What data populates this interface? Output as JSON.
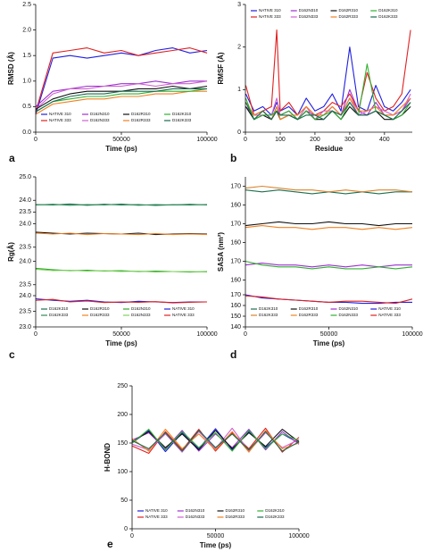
{
  "chart_data": [
    {
      "type": "line",
      "label": "a",
      "xlabel": "Time (ps)",
      "ylabel": "RMSD (Å)",
      "legend": "bottom",
      "x": [
        0,
        10000,
        20000,
        30000,
        40000,
        50000,
        60000,
        70000,
        80000,
        90000,
        100000
      ],
      "xlim": [
        0,
        100000
      ],
      "xticks": [
        0,
        50000,
        100000
      ],
      "ylim": [
        0,
        2.5
      ],
      "yticks": [
        {
          "value": 0,
          "label": "0.0"
        },
        0.5,
        {
          "value": 1,
          "label": "1.0"
        },
        1.5,
        {
          "value": 2,
          "label": "2.0"
        },
        2.5
      ],
      "series": [
        {
          "name": "NATIVE 310",
          "color": "#1f1fe0",
          "values": [
            0.35,
            1.45,
            1.5,
            1.45,
            1.5,
            1.55,
            1.5,
            1.6,
            1.65,
            1.55,
            1.6
          ]
        },
        {
          "name": "NATIVE 333",
          "color": "#e02020",
          "values": [
            0.4,
            1.55,
            1.6,
            1.65,
            1.55,
            1.6,
            1.5,
            1.55,
            1.6,
            1.65,
            1.55
          ]
        },
        {
          "name": "D162N310",
          "color": "#9b30d0",
          "values": [
            0.5,
            0.8,
            0.85,
            0.9,
            0.9,
            0.95,
            0.95,
            1.0,
            0.95,
            1.0,
            1.0
          ]
        },
        {
          "name": "D162N333",
          "color": "#d060d0",
          "values": [
            0.45,
            0.75,
            0.85,
            0.85,
            0.9,
            0.9,
            0.95,
            0.9,
            0.95,
            0.95,
            1.0
          ]
        },
        {
          "name": "D162R310",
          "color": "#111111",
          "values": [
            0.45,
            0.65,
            0.75,
            0.8,
            0.8,
            0.8,
            0.85,
            0.85,
            0.9,
            0.85,
            0.9
          ]
        },
        {
          "name": "D162R333",
          "color": "#f08020",
          "values": [
            0.35,
            0.55,
            0.6,
            0.65,
            0.65,
            0.7,
            0.7,
            0.75,
            0.75,
            0.8,
            0.8
          ]
        },
        {
          "name": "D162K310",
          "color": "#30b030",
          "values": [
            0.4,
            0.6,
            0.65,
            0.7,
            0.7,
            0.75,
            0.75,
            0.8,
            0.8,
            0.8,
            0.85
          ]
        },
        {
          "name": "D162K333",
          "color": "#1a6b50",
          "values": [
            0.4,
            0.6,
            0.7,
            0.75,
            0.75,
            0.8,
            0.8,
            0.8,
            0.85,
            0.85,
            0.85
          ]
        }
      ]
    },
    {
      "type": "line",
      "label": "b",
      "xlabel": "Residue",
      "ylabel": "RMSF (Å)",
      "legend": "top",
      "x": [
        1,
        25,
        50,
        75,
        90,
        100,
        125,
        150,
        175,
        200,
        225,
        250,
        275,
        300,
        325,
        350,
        375,
        400,
        425,
        450,
        475
      ],
      "xlim": [
        0,
        480
      ],
      "xticks": [
        0,
        100,
        200,
        300,
        400
      ],
      "ylim": [
        0,
        3
      ],
      "yticks": [
        0,
        1,
        2,
        3
      ],
      "series": [
        {
          "name": "NATIVE 310",
          "color": "#1f1fe0",
          "values": [
            0.9,
            0.5,
            0.6,
            0.4,
            0.7,
            0.5,
            0.6,
            0.4,
            0.8,
            0.5,
            0.6,
            0.9,
            0.5,
            2.0,
            0.6,
            0.5,
            1.1,
            0.6,
            0.5,
            0.7,
            1.0
          ]
        },
        {
          "name": "NATIVE 333",
          "color": "#e02020",
          "values": [
            1.1,
            0.4,
            0.5,
            0.6,
            2.4,
            0.5,
            0.7,
            0.4,
            0.6,
            0.4,
            0.5,
            0.7,
            0.6,
            0.9,
            0.5,
            1.4,
            0.8,
            0.5,
            0.6,
            0.9,
            2.4
          ]
        },
        {
          "name": "D162N310",
          "color": "#9b30d0",
          "values": [
            0.6,
            0.4,
            0.5,
            0.3,
            0.6,
            0.4,
            0.5,
            0.3,
            0.5,
            0.4,
            0.4,
            0.6,
            0.4,
            1.0,
            0.5,
            0.4,
            0.7,
            0.4,
            0.4,
            0.5,
            0.8
          ]
        },
        {
          "name": "D162N333",
          "color": "#d060d0",
          "values": [
            0.7,
            0.4,
            0.4,
            0.4,
            0.8,
            0.4,
            0.5,
            0.3,
            0.6,
            0.3,
            0.5,
            0.5,
            0.4,
            0.8,
            0.4,
            0.5,
            0.6,
            0.5,
            0.4,
            0.5,
            0.9
          ]
        },
        {
          "name": "D162R310",
          "color": "#111111",
          "values": [
            0.6,
            0.3,
            0.4,
            0.3,
            0.5,
            0.3,
            0.4,
            0.3,
            0.5,
            0.3,
            0.3,
            0.5,
            0.3,
            0.6,
            0.4,
            0.4,
            0.5,
            0.3,
            0.3,
            0.4,
            0.6
          ]
        },
        {
          "name": "D162R333",
          "color": "#f08020",
          "values": [
            0.7,
            0.4,
            0.5,
            0.3,
            0.6,
            0.3,
            0.4,
            0.4,
            0.6,
            0.4,
            0.4,
            0.6,
            0.4,
            0.8,
            0.5,
            0.5,
            0.6,
            0.4,
            0.4,
            0.6,
            0.8
          ]
        },
        {
          "name": "D162K310",
          "color": "#30b030",
          "values": [
            0.8,
            0.3,
            0.4,
            0.4,
            0.5,
            0.4,
            0.5,
            0.3,
            0.5,
            0.3,
            0.4,
            0.5,
            0.3,
            0.7,
            0.4,
            1.6,
            0.5,
            0.4,
            0.3,
            0.4,
            0.7
          ]
        },
        {
          "name": "D162K333",
          "color": "#1a6b50",
          "values": [
            0.7,
            0.3,
            0.5,
            0.3,
            0.5,
            0.4,
            0.4,
            0.3,
            0.4,
            0.4,
            0.3,
            0.5,
            0.4,
            0.7,
            0.4,
            0.4,
            0.5,
            0.4,
            0.3,
            0.5,
            0.7
          ]
        }
      ]
    },
    {
      "type": "line",
      "label": "c",
      "xlabel": "Time (ps)",
      "ylabel": "Rg(Å)",
      "legend": "bottom",
      "x": [
        0,
        10000,
        20000,
        30000,
        40000,
        50000,
        60000,
        70000,
        80000,
        90000,
        100000
      ],
      "xlim": [
        0,
        100000
      ],
      "xticks": [
        0,
        50000,
        100000
      ],
      "lanes": [
        {
          "ylim": [
            23.4,
            25.0
          ],
          "yticks": [
            23.5,
            {
              "value": 24,
              "label": "24.0"
            },
            {
              "value": 25,
              "label": "25.0"
            }
          ],
          "series": [
            {
              "name": "D162K310",
              "color": "#1f6f50",
              "values": [
                23.82,
                23.8,
                23.84,
                23.79,
                23.83,
                23.8,
                23.82,
                23.78,
                23.81,
                23.8,
                23.82
              ]
            },
            {
              "name": "D162K333",
              "color": "#2e8b57",
              "values": [
                23.8,
                23.83,
                23.79,
                23.82,
                23.8,
                23.84,
                23.79,
                23.82,
                23.8,
                23.83,
                23.8
              ]
            }
          ]
        },
        {
          "ylim": [
            23.4,
            24.2
          ],
          "yticks": [
            23.5,
            {
              "value": 24,
              "label": "24.0"
            }
          ],
          "series": [
            {
              "name": "D162R310",
              "color": "#111111",
              "values": [
                23.82,
                23.8,
                23.78,
                23.8,
                23.79,
                23.78,
                23.8,
                23.77,
                23.78,
                23.79,
                23.78
              ]
            },
            {
              "name": "D162R333",
              "color": "#f08020",
              "values": [
                23.8,
                23.78,
                23.8,
                23.77,
                23.79,
                23.78,
                23.77,
                23.79,
                23.77,
                23.78,
                23.77
              ]
            }
          ]
        },
        {
          "ylim": [
            23.4,
            24.2
          ],
          "yticks": [
            23.5,
            {
              "value": 24,
              "label": "24.0"
            }
          ],
          "series": [
            {
              "name": "D162N310",
              "color": "#2fa82f",
              "values": [
                23.85,
                23.82,
                23.8,
                23.81,
                23.79,
                23.8,
                23.78,
                23.79,
                23.78,
                23.77,
                23.78
              ]
            },
            {
              "name": "D162N333",
              "color": "#7fd35a",
              "values": [
                23.83,
                23.8,
                23.81,
                23.79,
                23.8,
                23.78,
                23.79,
                23.77,
                23.78,
                23.78,
                23.77
              ]
            }
          ]
        },
        {
          "ylim": [
            23.0,
            24.2
          ],
          "yticks": [
            {
              "value": 23,
              "label": "23.0"
            },
            23.5,
            {
              "value": 24,
              "label": "24.0"
            }
          ],
          "series": [
            {
              "name": "NATIVE 310",
              "color": "#1f1fe0",
              "values": [
                23.9,
                23.85,
                23.82,
                23.85,
                23.8,
                23.78,
                23.82,
                23.8,
                23.78,
                23.8,
                23.8
              ]
            },
            {
              "name": "NATIVE 333",
              "color": "#e02020",
              "values": [
                23.85,
                23.88,
                23.8,
                23.83,
                23.78,
                23.8,
                23.79,
                23.81,
                23.77,
                23.79,
                23.8
              ]
            }
          ]
        }
      ]
    },
    {
      "type": "line",
      "label": "d",
      "xlabel": "Time (ps)",
      "ylabel": "SASA (nm²)",
      "legend": "bottom",
      "x": [
        0,
        10000,
        20000,
        30000,
        40000,
        50000,
        60000,
        70000,
        80000,
        90000,
        100000
      ],
      "xlim": [
        0,
        100000
      ],
      "xticks": [
        0,
        50000,
        100000
      ],
      "lanes": [
        {
          "ylim": [
            155,
            175
          ],
          "yticks": [
            160,
            170
          ],
          "series": [
            {
              "name": "D162K310",
              "color": "#1f6f50",
              "values": [
                168,
                167,
                168,
                167,
                166,
                167,
                166,
                167,
                166,
                167,
                167
              ]
            },
            {
              "name": "D162K333",
              "color": "#d9822b",
              "values": [
                169,
                170,
                169,
                168,
                168,
                167,
                168,
                167,
                168,
                168,
                167
              ]
            }
          ]
        },
        {
          "ylim": [
            155,
            175
          ],
          "yticks": [
            160,
            170
          ],
          "series": [
            {
              "name": "D162R310",
              "color": "#111111",
              "values": [
                169,
                170,
                171,
                170,
                170,
                171,
                170,
                170,
                169,
                170,
                170
              ]
            },
            {
              "name": "D162R333",
              "color": "#f08020",
              "values": [
                168,
                169,
                168,
                168,
                167,
                168,
                168,
                167,
                168,
                167,
                168
              ]
            }
          ]
        },
        {
          "ylim": [
            155,
            175
          ],
          "yticks": [
            160,
            170
          ],
          "series": [
            {
              "name": "D162N310",
              "color": "#9b30d0",
              "values": [
                168,
                169,
                168,
                168,
                167,
                168,
                167,
                168,
                167,
                168,
                168
              ]
            },
            {
              "name": "D162N333",
              "color": "#30b030",
              "values": [
                170,
                168,
                167,
                167,
                166,
                167,
                166,
                166,
                167,
                166,
                167
              ]
            }
          ]
        },
        {
          "ylim": [
            140,
            175
          ],
          "yticks": [
            140,
            150,
            160,
            170
          ],
          "series": [
            {
              "name": "NATIVE 310",
              "color": "#1f1fe0",
              "values": [
                170,
                167,
                166,
                165,
                164,
                163,
                163,
                162,
                162,
                163,
                163
              ]
            },
            {
              "name": "NATIVE 333",
              "color": "#e02020",
              "values": [
                169,
                168,
                166,
                165,
                164,
                163,
                164,
                164,
                163,
                162,
                166
              ]
            }
          ]
        }
      ]
    },
    {
      "type": "line",
      "label": "e",
      "xlabel": "Time (ps)",
      "ylabel": "H-BOND",
      "legend": "bottom",
      "x": [
        0,
        10000,
        20000,
        30000,
        40000,
        50000,
        60000,
        70000,
        80000,
        90000,
        100000
      ],
      "xlim": [
        0,
        100000
      ],
      "xticks": [
        0,
        50000,
        100000
      ],
      "ylim": [
        0,
        250
      ],
      "yticks": [
        0,
        50,
        100,
        150,
        200,
        250
      ],
      "series": [
        {
          "name": "NATIVE 310",
          "color": "#1f1fe0",
          "values": [
            150,
            172,
            135,
            168,
            140,
            175,
            138,
            170,
            142,
            166,
            150
          ]
        },
        {
          "name": "NATIVE 333",
          "color": "#e02020",
          "values": [
            145,
            132,
            170,
            138,
            174,
            136,
            168,
            140,
            176,
            134,
            160
          ]
        },
        {
          "name": "D162N310",
          "color": "#9b30d0",
          "values": [
            155,
            168,
            140,
            172,
            136,
            166,
            142,
            174,
            138,
            170,
            148
          ]
        },
        {
          "name": "D162N333",
          "color": "#d060d0",
          "values": [
            148,
            138,
            166,
            134,
            170,
            140,
            176,
            136,
            168,
            142,
            156
          ]
        },
        {
          "name": "D162R310",
          "color": "#111111",
          "values": [
            152,
            170,
            142,
            166,
            138,
            172,
            140,
            168,
            144,
            174,
            152
          ]
        },
        {
          "name": "D162R333",
          "color": "#f08020",
          "values": [
            158,
            136,
            174,
            140,
            166,
            138,
            170,
            134,
            172,
            140,
            150
          ]
        },
        {
          "name": "D162K310",
          "color": "#30b030",
          "values": [
            150,
            174,
            138,
            170,
            142,
            168,
            136,
            172,
            140,
            166,
            154
          ]
        },
        {
          "name": "D162K333",
          "color": "#1a6b50",
          "values": [
            154,
            140,
            168,
            136,
            172,
            142,
            166,
            138,
            170,
            136,
            152
          ]
        }
      ]
    }
  ]
}
